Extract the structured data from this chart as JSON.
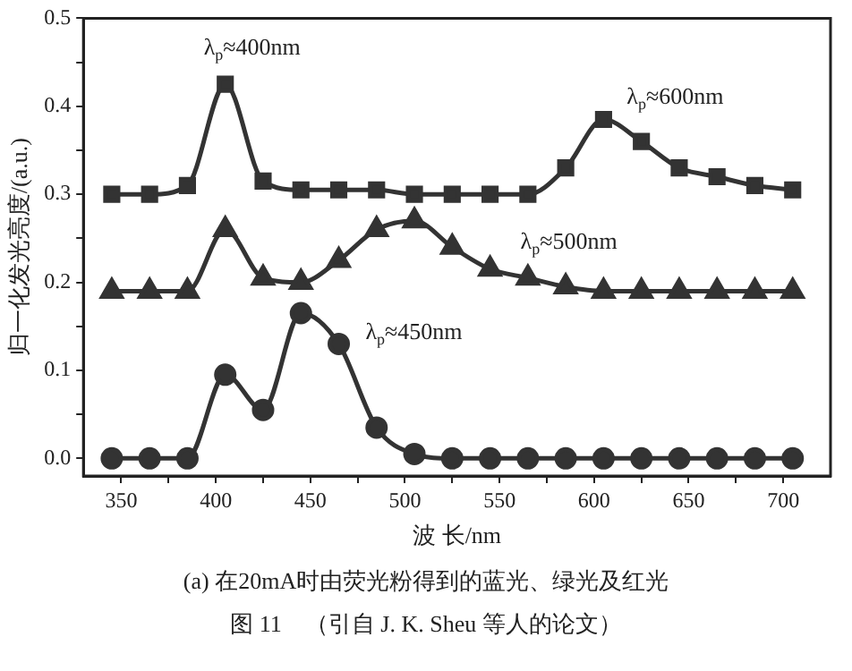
{
  "chart_data": {
    "type": "line",
    "xlabel": "波 长/nm",
    "ylabel": "归一化发光亮度/(a.u.)",
    "x": [
      345,
      365,
      385,
      405,
      425,
      445,
      465,
      485,
      505,
      525,
      545,
      565,
      585,
      605,
      625,
      645,
      665,
      685,
      705
    ],
    "series": [
      {
        "color": "#333333",
        "marker": "square",
        "values": [
          0.3,
          0.3,
          0.31,
          0.425,
          0.315,
          0.305,
          0.305,
          0.305,
          0.3,
          0.3,
          0.3,
          0.3,
          0.33,
          0.385,
          0.36,
          0.33,
          0.32,
          0.31,
          0.305
        ]
      },
      {
        "color": "#333333",
        "marker": "triangle",
        "values": [
          0.19,
          0.19,
          0.19,
          0.26,
          0.205,
          0.2,
          0.225,
          0.26,
          0.27,
          0.24,
          0.215,
          0.205,
          0.195,
          0.19,
          0.19,
          0.19,
          0.19,
          0.19,
          0.19
        ]
      },
      {
        "color": "#333333",
        "marker": "circle",
        "values": [
          0,
          0,
          0,
          0.095,
          0.055,
          0.165,
          0.13,
          0.035,
          0.005,
          0,
          0,
          0,
          0,
          0,
          0,
          0,
          0,
          0,
          0
        ]
      }
    ],
    "xlim": [
      330,
      725
    ],
    "xticks": [
      350,
      {
        "value": 375,
        "label": null
      },
      400,
      {
        "value": 425,
        "label": null
      },
      450,
      {
        "value": 475,
        "label": null
      },
      500,
      {
        "value": 525,
        "label": null
      },
      550,
      {
        "value": 575,
        "label": null
      },
      600,
      {
        "value": 625,
        "label": null
      },
      650,
      {
        "value": 675,
        "label": null
      },
      700
    ],
    "ylim": [
      -0.02,
      0.5
    ],
    "yticks": [
      {
        "value": 0,
        "label": "0.0"
      },
      {
        "value": 0.05,
        "label": null
      },
      0.1,
      {
        "value": 0.15,
        "label": null
      },
      0.2,
      {
        "value": 0.25,
        "label": null
      },
      0.3,
      {
        "value": 0.35,
        "label": null
      },
      0.4,
      {
        "value": 0.45,
        "label": null
      },
      0.5
    ],
    "grid": false,
    "legend": false,
    "line_style": "solid",
    "annotations": [
      {
        "text": "λ$_{p}$≈400nm",
        "x": 405,
        "y": 0.425
      },
      {
        "text": "λ$_{p}$≈600nm",
        "x": 605,
        "y": 0.385
      },
      {
        "text": "λ$_{p}$≈500nm",
        "x": 545,
        "y": 0.215
      },
      {
        "text": "λ$_{p}$≈450nm",
        "x": 465,
        "y": 0.13
      },
      "(a) 在20mA时由荧光粉得到的蓝光、绿光及红光",
      "图 11　（引自 J. K. Sheu 等人的论文）"
    ]
  }
}
